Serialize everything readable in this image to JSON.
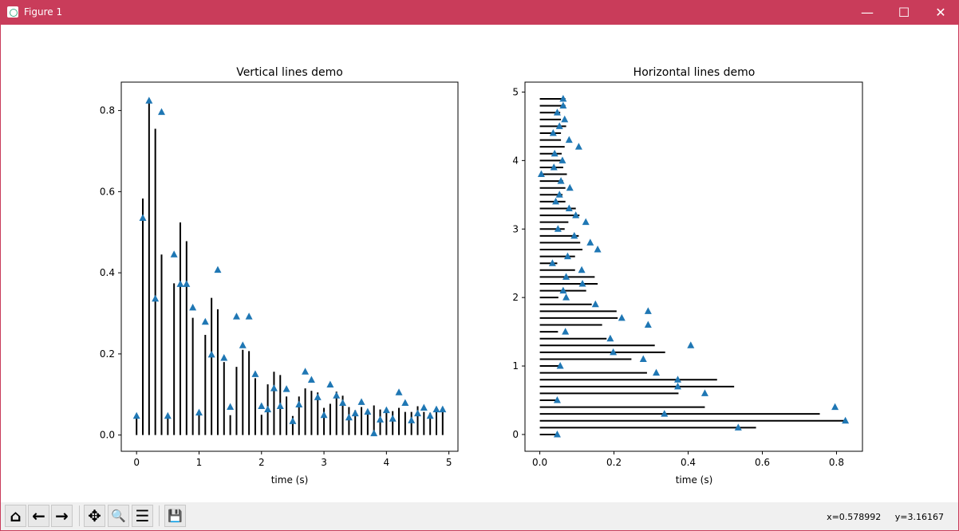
{
  "window": {
    "title": "Figure 1",
    "minimize": "—",
    "maximize": "☐",
    "close": "✕"
  },
  "toolbar": {
    "buttons": [
      {
        "name": "home",
        "glyph": "⌂"
      },
      {
        "name": "back",
        "glyph": "←"
      },
      {
        "name": "forward",
        "glyph": "→"
      },
      {
        "name": "pan",
        "glyph": "✥"
      },
      {
        "name": "zoom",
        "glyph": "🔍"
      },
      {
        "name": "configure-subplots",
        "glyph": "☰"
      },
      {
        "name": "save",
        "glyph": "💾"
      }
    ],
    "coords_x": "x=0.578992",
    "coords_y": "y=3.16167"
  },
  "colors": {
    "titlebar": "#c93c5a",
    "marker": "#1f77b4",
    "line": "#000000"
  },
  "chart_data": [
    {
      "type": "scatter",
      "title": "Vertical lines demo",
      "xlabel": "time (s)",
      "ylabel": "",
      "xlim": [
        -0.245,
        5.145
      ],
      "ylim": [
        -0.04,
        0.87
      ],
      "xticks": [
        "0",
        "1",
        "2",
        "3",
        "4",
        "5"
      ],
      "xtick_values": [
        0,
        1,
        2,
        3,
        4,
        5
      ],
      "yticks": [
        "0.0",
        "0.2",
        "0.4",
        "0.6",
        "0.8"
      ],
      "ytick_values": [
        0,
        0.2,
        0.4,
        0.6,
        0.8
      ],
      "series": [
        {
          "name": "vlines",
          "kind": "vlines",
          "x": [
            0,
            0.1,
            0.2,
            0.3,
            0.4,
            0.5,
            0.6,
            0.7,
            0.8,
            0.9,
            1.0,
            1.1,
            1.2,
            1.3,
            1.4,
            1.5,
            1.6,
            1.7,
            1.8,
            1.9,
            2.0,
            2.1,
            2.2,
            2.3,
            2.4,
            2.5,
            2.6,
            2.7,
            2.8,
            2.9,
            3.0,
            3.1,
            3.2,
            3.3,
            3.4,
            3.5,
            3.6,
            3.7,
            3.8,
            3.9,
            4.0,
            4.1,
            4.2,
            4.3,
            4.4,
            4.5,
            4.6,
            4.7,
            4.8,
            4.9
          ],
          "values": [
            0.05,
            0.583,
            0.822,
            0.755,
            0.445,
            0.049,
            0.374,
            0.524,
            0.478,
            0.289,
            0.053,
            0.247,
            0.338,
            0.31,
            0.18,
            0.049,
            0.168,
            0.21,
            0.207,
            0.14,
            0.05,
            0.125,
            0.156,
            0.148,
            0.095,
            0.047,
            0.095,
            0.115,
            0.109,
            0.105,
            0.067,
            0.077,
            0.107,
            0.097,
            0.069,
            0.061,
            0.069,
            0.063,
            0.073,
            0.063,
            0.061,
            0.059,
            0.067,
            0.057,
            0.057,
            0.071,
            0.057,
            0.055,
            0.069,
            0.069
          ]
        },
        {
          "name": "markers",
          "kind": "triangle",
          "x": [
            0,
            0.1,
            0.2,
            0.3,
            0.4,
            0.5,
            0.6,
            0.7,
            0.8,
            0.9,
            1.0,
            1.1,
            1.2,
            1.3,
            1.4,
            1.5,
            1.6,
            1.7,
            1.8,
            1.9,
            2.0,
            2.1,
            2.2,
            2.3,
            2.4,
            2.5,
            2.6,
            2.7,
            2.8,
            2.9,
            3.0,
            3.1,
            3.2,
            3.3,
            3.4,
            3.5,
            3.6,
            3.7,
            3.8,
            3.9,
            4.0,
            4.1,
            4.2,
            4.3,
            4.4,
            4.5,
            4.6,
            4.7,
            4.8,
            4.9
          ],
          "values": [
            0.047,
            0.535,
            0.824,
            0.336,
            0.796,
            0.047,
            0.445,
            0.372,
            0.372,
            0.314,
            0.055,
            0.279,
            0.198,
            0.407,
            0.19,
            0.069,
            0.292,
            0.221,
            0.292,
            0.15,
            0.071,
            0.063,
            0.115,
            0.071,
            0.113,
            0.034,
            0.075,
            0.156,
            0.136,
            0.093,
            0.049,
            0.124,
            0.097,
            0.079,
            0.043,
            0.053,
            0.081,
            0.057,
            0.004,
            0.038,
            0.061,
            0.04,
            0.105,
            0.079,
            0.036,
            0.053,
            0.067,
            0.047,
            0.063,
            0.063
          ]
        }
      ]
    },
    {
      "type": "scatter",
      "title": "Horizontal lines demo",
      "xlabel": "time (s)",
      "ylabel": "",
      "xlim": [
        -0.04,
        0.87
      ],
      "ylim": [
        -0.245,
        5.145
      ],
      "xticks": [
        "0.0",
        "0.2",
        "0.4",
        "0.6",
        "0.8"
      ],
      "xtick_values": [
        0,
        0.2,
        0.4,
        0.6,
        0.8
      ],
      "yticks": [
        "0",
        "1",
        "2",
        "3",
        "4",
        "5"
      ],
      "ytick_values": [
        0,
        1,
        2,
        3,
        4,
        5
      ],
      "note": "same data transposed: hlines at y=t from 0 to s, triangles at (s+nse, t)"
    }
  ]
}
